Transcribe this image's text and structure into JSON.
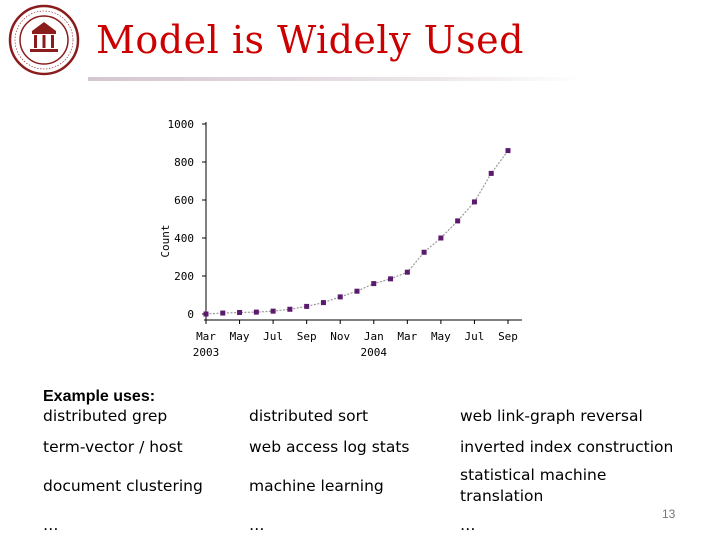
{
  "title": "Model is Widely Used",
  "colors": {
    "title": "#cc0000",
    "marker": "#5b1a6e"
  },
  "chart_data": {
    "type": "line",
    "title": "",
    "xlabel": "",
    "ylabel": "Count",
    "ylim": [
      0,
      1000
    ],
    "y_ticks": [
      0,
      200,
      400,
      600,
      800,
      1000
    ],
    "y_tick_labels": [
      "0",
      "200",
      "400",
      "600",
      "800",
      "1000"
    ],
    "x_tick_labels": [
      "Mar",
      "May",
      "Jul",
      "Sep",
      "Nov",
      "Jan",
      "Mar",
      "May",
      "Jul",
      "Sep"
    ],
    "x_year_labels": [
      {
        "label": "2003",
        "tick_index": 0
      },
      {
        "label": "2004",
        "tick_index": 5
      }
    ],
    "grid": false,
    "series": [
      {
        "x": [
          0,
          1,
          2,
          3,
          4,
          5,
          6,
          7,
          8,
          9,
          10,
          11,
          12,
          13,
          14,
          15,
          16,
          17,
          18
        ],
        "values": [
          0,
          5,
          8,
          10,
          15,
          25,
          40,
          60,
          90,
          120,
          160,
          185,
          220,
          325,
          400,
          490,
          590,
          740,
          860
        ]
      }
    ]
  },
  "uses": {
    "heading": "Example uses:",
    "col1": [
      "distributed grep",
      "term-vector / host",
      "document clustering",
      "…"
    ],
    "col2": [
      "distributed sort",
      "web access log stats",
      "machine learning",
      "…"
    ],
    "col3": [
      "web link-graph reversal",
      "inverted index construction",
      "statistical machine translation",
      "…"
    ]
  },
  "page_number": "13"
}
